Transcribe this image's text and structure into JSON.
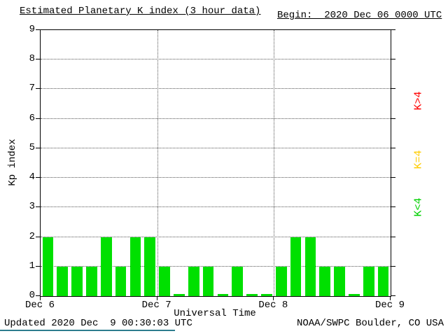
{
  "chart_data": {
    "type": "bar",
    "title": "Estimated Planetary K index (3 hour data)",
    "begin_label": "Begin:  2020 Dec 06 0000 UTC",
    "xlabel": "Universal Time",
    "ylabel": "Kp index",
    "ylim": [
      0,
      9
    ],
    "y_ticks": [
      0,
      1,
      2,
      3,
      4,
      5,
      6,
      7,
      8,
      9
    ],
    "x_ticks": [
      "Dec 6",
      "Dec 7",
      "Dec 8",
      "Dec 9"
    ],
    "values": [
      2,
      1,
      1,
      1,
      2,
      1,
      2,
      2,
      1,
      0,
      1,
      1,
      0,
      1,
      0,
      0,
      1,
      2,
      2,
      1,
      1,
      0,
      1,
      1
    ],
    "bar_color": "#00e000",
    "grid": true,
    "legend_position": "right",
    "legend": [
      {
        "label": "K>4",
        "color": "#ff0000"
      },
      {
        "label": "K=4",
        "color": "#ffcc00"
      },
      {
        "label": "K<4",
        "color": "#00d000"
      }
    ],
    "footer_left": "Updated 2020 Dec  9 00:30:03 UTC",
    "footer_right": "NOAA/SWPC Boulder, CO USA",
    "footer_rule_color": "#2d7d8e"
  }
}
